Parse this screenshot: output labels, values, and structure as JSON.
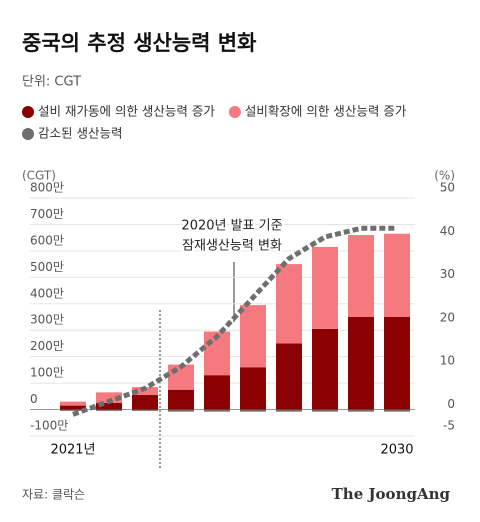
{
  "chart_data": {
    "type": "bar",
    "title": "중국의 추정 생산능력 변화",
    "subtitle": "단위: CGT",
    "y_label": "(CGT)",
    "y2_label": "(%)",
    "categories": [
      "2021년",
      null,
      null,
      null,
      null,
      null,
      null,
      null,
      null,
      "2030"
    ],
    "series": [
      {
        "name": "설비 재가동에 의한 생산능력 증가",
        "color": "#8b0000",
        "values": [
          15,
          25,
          55,
          75,
          130,
          160,
          250,
          305,
          350,
          350
        ]
      },
      {
        "name": "설비확장에 의한 생산능력 증가",
        "color": "#f47a80",
        "values": [
          15,
          40,
          30,
          95,
          165,
          235,
          300,
          310,
          310,
          315
        ]
      },
      {
        "name": "감소된 생산능력",
        "color": "#6e6e6e",
        "values": [
          -5,
          -5,
          -5,
          -8,
          -8,
          -8,
          -8,
          -8,
          -8,
          -8
        ]
      },
      {
        "type": "line",
        "axis": "y2",
        "color": "#6e6e6e",
        "values": [
          0,
          3,
          6,
          11,
          18,
          27,
          36,
          41,
          43,
          43
        ]
      }
    ],
    "ylim": [
      -100,
      800
    ],
    "yticks": [
      {
        "value": -100,
        "label": "-100만"
      },
      0,
      {
        "value": 100,
        "label": "100만"
      },
      {
        "value": 200,
        "label": "200만"
      },
      {
        "value": 300,
        "label": "300만"
      },
      {
        "value": 400,
        "label": "400만"
      },
      {
        "value": 500,
        "label": "500만"
      },
      {
        "value": 600,
        "label": "600만"
      },
      {
        "value": 700,
        "label": "700만"
      },
      {
        "value": 800,
        "label": "800만"
      }
    ],
    "y2lim": [
      -5,
      50
    ],
    "y2ticks": [
      -5,
      0,
      10,
      20,
      30,
      40,
      50
    ],
    "annotation": [
      "2020년 발표 기준",
      "잠재생산능력 변화"
    ],
    "source": "자료: 클락슨",
    "logo": "The JoongAng"
  }
}
